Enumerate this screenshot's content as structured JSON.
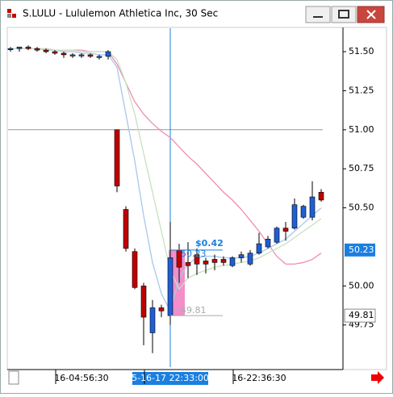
{
  "chart_data": {
    "type": "candlestick",
    "title": "S.LULU - Lululemon Athletica Inc, 30 Sec",
    "categories": [
      null,
      null,
      null,
      null,
      null,
      null,
      null,
      null,
      "16-04:56:30",
      null,
      null,
      null,
      null,
      null,
      null,
      null,
      null,
      null,
      "5-16-17 22:33:00",
      null,
      null,
      null,
      null,
      null,
      null,
      null,
      null,
      null,
      "16-22:36:30",
      null,
      null,
      null,
      null,
      null,
      null,
      null
    ],
    "open": [
      51.52,
      51.52,
      51.53,
      51.52,
      51.51,
      51.5,
      51.49,
      51.48,
      51.48,
      51.48,
      51.47,
      51.47,
      51.0,
      50.49,
      50.22,
      50.0,
      49.7,
      49.86,
      49.81,
      50.23,
      50.15,
      50.2,
      50.16,
      50.17,
      50.17,
      50.13,
      50.18,
      50.14,
      50.21,
      50.25,
      50.28,
      50.37,
      50.37,
      50.44,
      50.44,
      50.6
    ],
    "high": [
      51.53,
      51.53,
      51.54,
      51.53,
      51.52,
      51.51,
      51.5,
      51.49,
      51.49,
      51.49,
      51.48,
      51.51,
      51.0,
      50.51,
      50.24,
      50.02,
      49.91,
      49.88,
      50.41,
      50.27,
      50.28,
      50.24,
      50.18,
      50.2,
      50.19,
      50.19,
      50.22,
      50.23,
      50.34,
      50.32,
      50.38,
      50.41,
      50.56,
      50.52,
      50.67,
      50.62
    ],
    "low": [
      51.5,
      51.5,
      51.51,
      51.5,
      51.49,
      51.48,
      51.46,
      51.46,
      51.46,
      51.46,
      51.45,
      51.45,
      50.6,
      50.22,
      49.98,
      49.62,
      49.57,
      49.8,
      49.75,
      50.02,
      50.05,
      50.07,
      50.08,
      50.1,
      50.13,
      50.12,
      50.15,
      50.13,
      50.2,
      50.24,
      50.27,
      50.29,
      50.36,
      50.43,
      50.42,
      50.54
    ],
    "close": [
      51.52,
      51.53,
      51.52,
      51.51,
      51.5,
      51.49,
      51.48,
      51.48,
      51.48,
      51.47,
      51.47,
      51.5,
      50.64,
      50.24,
      49.99,
      49.8,
      49.86,
      49.84,
      50.18,
      50.12,
      50.13,
      50.14,
      50.14,
      50.15,
      50.15,
      50.18,
      50.2,
      50.21,
      50.27,
      50.3,
      50.37,
      50.35,
      50.52,
      50.51,
      50.57,
      50.55
    ],
    "up_color": "#1f5fd6",
    "down_color": "#c00000",
    "lines": [
      {
        "color": "#f08cb4",
        "values": [
          51.52,
          51.52,
          51.52,
          51.52,
          51.52,
          51.51,
          51.51,
          51.51,
          51.51,
          51.5,
          51.5,
          51.5,
          51.42,
          51.3,
          51.18,
          51.1,
          51.04,
          50.99,
          50.95,
          50.89,
          50.83,
          50.78,
          50.72,
          50.66,
          50.6,
          50.55,
          50.49,
          50.42,
          50.35,
          50.27,
          50.19,
          50.14,
          50.14,
          50.15,
          50.17,
          50.21
        ]
      },
      {
        "color": "#a8c8e8",
        "values": [
          51.52,
          51.52,
          51.52,
          51.52,
          51.51,
          51.51,
          51.5,
          51.5,
          51.49,
          51.49,
          51.48,
          51.48,
          51.4,
          51.1,
          50.8,
          50.45,
          50.15,
          49.95,
          49.84,
          50.05,
          50.14,
          50.18,
          50.19,
          50.19,
          50.18,
          50.18,
          50.18,
          50.19,
          50.21,
          50.24,
          50.27,
          50.3,
          50.35,
          50.4,
          50.45,
          50.5
        ]
      },
      {
        "color": "#c8e0c0",
        "values": [
          51.52,
          51.52,
          51.52,
          51.52,
          51.52,
          51.51,
          51.51,
          51.51,
          51.5,
          51.5,
          51.5,
          51.5,
          51.45,
          51.3,
          51.1,
          50.85,
          50.6,
          50.35,
          50.1,
          49.98,
          50.05,
          50.08,
          50.1,
          50.12,
          50.13,
          50.14,
          50.15,
          50.16,
          50.18,
          50.21,
          50.24,
          50.27,
          50.31,
          50.35,
          50.39,
          50.43
        ]
      }
    ],
    "hline": 51.0,
    "cursor": {
      "category": 18
    },
    "measure": {
      "start": 49.81,
      "end": 50.23,
      "label": "$0.42"
    },
    "ylim": [
      49.48,
      51.65
    ],
    "yticks": [
      {
        "value": 49.75,
        "label": "49.75"
      },
      {
        "value": 50,
        "label": "50.00"
      },
      {
        "value": 50.5,
        "label": "50.50"
      },
      {
        "value": 50.75,
        "label": "50.75"
      },
      {
        "value": 51,
        "label": "51.00"
      },
      {
        "value": 51.25,
        "label": "51.25"
      },
      {
        "value": 51.5,
        "label": "51.50"
      }
    ]
  }
}
